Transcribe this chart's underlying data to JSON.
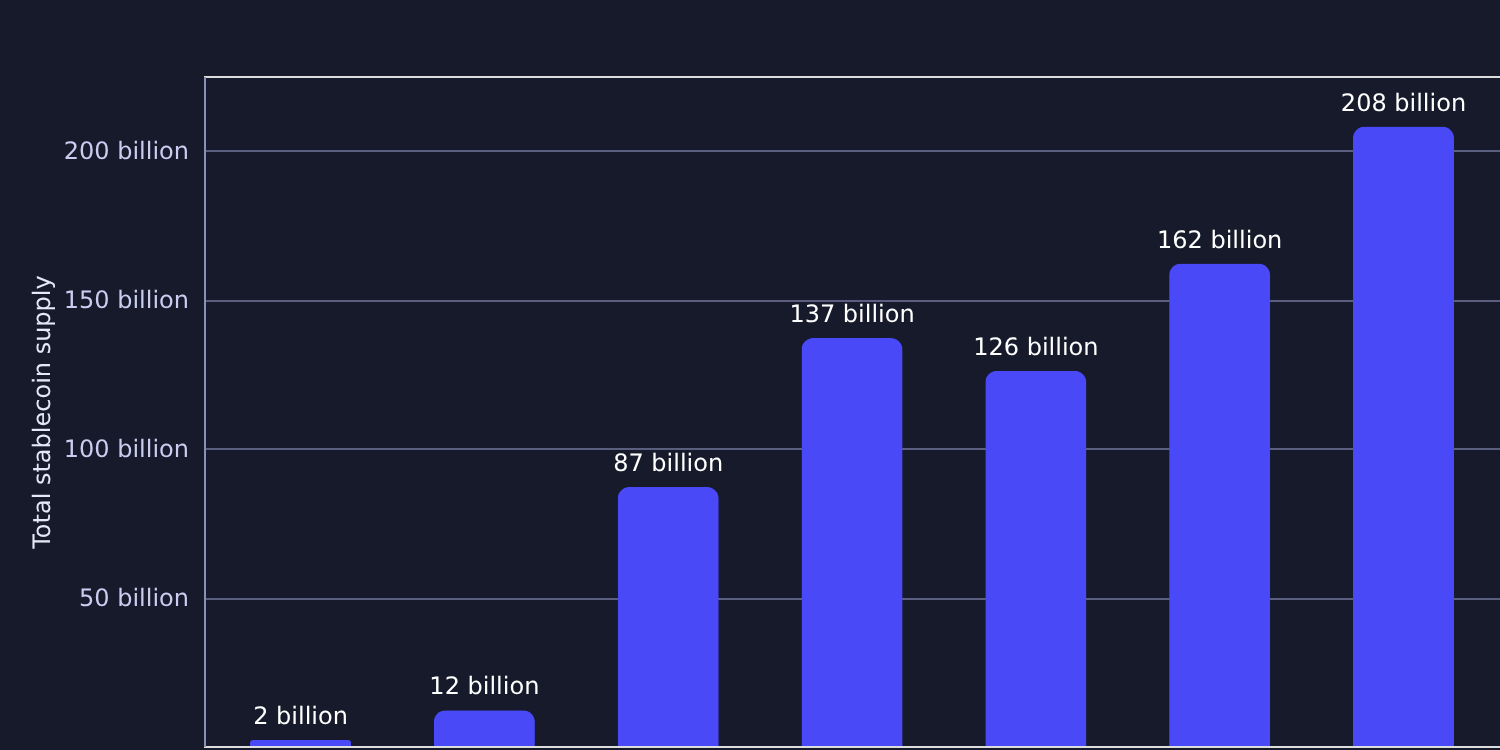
{
  "chart_data": {
    "type": "bar",
    "ylabel": "Total stablecoin supply",
    "categories": [
      null,
      null,
      null,
      null,
      null,
      null,
      null
    ],
    "values": [
      2,
      12,
      87,
      137,
      126,
      162,
      208
    ],
    "value_labels": [
      "2 billion",
      "12 billion",
      "87 billion",
      "137 billion",
      "126 billion",
      "162 billion",
      "208 billion"
    ],
    "color": "#4a49f8",
    "ylim": [
      0,
      225
    ],
    "yticks": [
      {
        "value": 50,
        "label": "50 billion"
      },
      {
        "value": 100,
        "label": "100 billion"
      },
      {
        "value": 150,
        "label": "150 billion"
      },
      {
        "value": 200,
        "label": "200 billion"
      }
    ],
    "grid": "y",
    "tick_labels": "y"
  }
}
